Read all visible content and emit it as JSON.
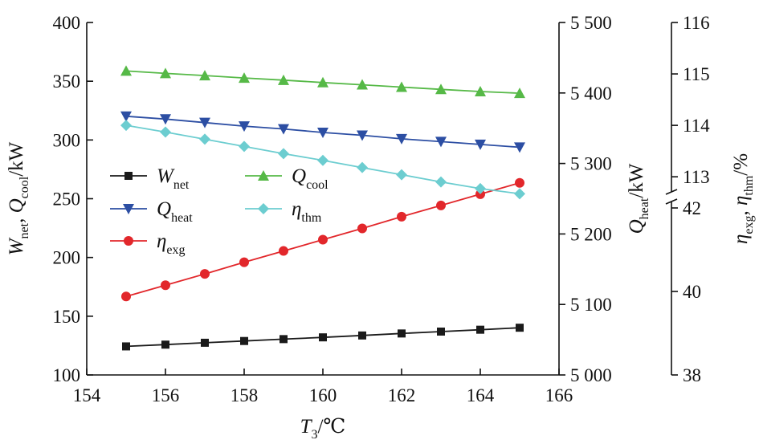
{
  "chart_data": {
    "type": "line",
    "x": [
      155,
      156,
      157,
      158,
      159,
      160,
      161,
      162,
      163,
      164,
      165
    ],
    "xlabel": {
      "main": "T",
      "sub": "3",
      "unit": "/℃"
    },
    "xlim": [
      154,
      166
    ],
    "xticks": [
      154,
      156,
      158,
      160,
      162,
      164,
      166
    ],
    "left_axis": {
      "label": {
        "parts": [
          {
            "t": "W",
            "i": true
          },
          {
            "t": "net",
            "sub": true
          },
          {
            "t": ", "
          },
          {
            "t": "Q",
            "i": true
          },
          {
            "t": "cool",
            "sub": true
          },
          {
            "t": "/kW"
          }
        ]
      },
      "ylim": [
        100,
        400
      ],
      "ticks": [
        100,
        150,
        200,
        250,
        300,
        350,
        400
      ],
      "tick_labels": [
        "100",
        "150",
        "200",
        "250",
        "300",
        "350",
        "400"
      ]
    },
    "right_axis_1": {
      "label": {
        "parts": [
          {
            "t": "Q",
            "i": true
          },
          {
            "t": "heat",
            "sub": true
          },
          {
            "t": "/kW"
          }
        ]
      },
      "ylim": [
        5000,
        5500
      ],
      "ticks": [
        5000,
        5100,
        5200,
        5300,
        5400,
        5500
      ],
      "tick_labels": [
        "5 000",
        "5 100",
        "5 200",
        "5 300",
        "5 400",
        "5 500"
      ]
    },
    "right_axis_2": {
      "label": {
        "parts": [
          {
            "t": "η",
            "i": true
          },
          {
            "t": "exg",
            "sub": true
          },
          {
            "t": ", "
          },
          {
            "t": "η",
            "i": true
          },
          {
            "t": "thm",
            "sub": true
          },
          {
            "t": "/%"
          }
        ]
      },
      "broken": true,
      "lower_segment": {
        "ylim": [
          38,
          42
        ],
        "ticks": [
          38,
          40,
          42
        ],
        "tick_labels": [
          "38",
          "40",
          "42"
        ]
      },
      "upper_segment": {
        "ylim": [
          112.8,
          116
        ],
        "ticks": [
          113,
          114,
          115,
          116
        ],
        "tick_labels": [
          "113",
          "114",
          "115",
          "116"
        ]
      }
    },
    "series": [
      {
        "key": "wnet",
        "name": {
          "main": "W",
          "sub": "net"
        },
        "axis": "left",
        "color": "#1a1a1a",
        "marker": "square",
        "values": [
          124.3,
          125.8,
          127.4,
          128.9,
          130.5,
          132.0,
          133.6,
          135.3,
          136.9,
          138.5,
          140.2
        ]
      },
      {
        "key": "qheat",
        "name": {
          "main": "Q",
          "sub": "heat"
        },
        "axis": "right1",
        "color": "#2c4ea3",
        "marker": "triangle-down",
        "values": [
          5367,
          5363,
          5358,
          5353,
          5349,
          5344,
          5340,
          5335,
          5331,
          5327,
          5323
        ]
      },
      {
        "key": "etaexg",
        "name": {
          "main": "η",
          "sub": "exg"
        },
        "axis": "right2",
        "color": "#e2272b",
        "marker": "circle",
        "values": [
          39.88,
          40.15,
          40.42,
          40.7,
          40.97,
          41.24,
          41.51,
          41.79,
          42.06,
          42.33,
          42.6
        ]
      },
      {
        "key": "qcool",
        "name": {
          "main": "Q",
          "sub": "cool"
        },
        "axis": "left",
        "color": "#56b947",
        "marker": "triangle-up",
        "values": [
          358.7,
          356.7,
          354.8,
          352.8,
          350.9,
          348.9,
          347.0,
          345.0,
          343.1,
          341.2,
          339.8
        ]
      },
      {
        "key": "etathm",
        "name": {
          "main": "η",
          "sub": "thm"
        },
        "axis": "right2",
        "color": "#6ccdd0",
        "marker": "diamond",
        "values": [
          114.0,
          113.87,
          113.73,
          113.59,
          113.45,
          113.32,
          113.18,
          113.04,
          112.9,
          112.77,
          112.67
        ]
      }
    ],
    "legend": {
      "placement": "center-left",
      "order": [
        "wnet",
        "qcool",
        "qheat",
        "etathm",
        "etaexg"
      ]
    },
    "grid": false
  }
}
